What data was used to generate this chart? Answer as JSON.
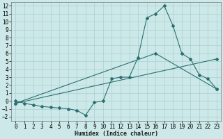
{
  "xlabel": "Humidex (Indice chaleur)",
  "bg_color": "#cce8e8",
  "line_color": "#2a7070",
  "grid_color": "#aad0d0",
  "xlim": [
    -0.5,
    23.5
  ],
  "ylim": [
    -2.5,
    12.5
  ],
  "xticks": [
    0,
    1,
    2,
    3,
    4,
    5,
    6,
    7,
    8,
    9,
    10,
    11,
    12,
    13,
    14,
    15,
    16,
    17,
    18,
    19,
    20,
    21,
    22,
    23
  ],
  "yticks": [
    -2,
    -1,
    0,
    1,
    2,
    3,
    4,
    5,
    6,
    7,
    8,
    9,
    10,
    11,
    12
  ],
  "line1_x": [
    0,
    1,
    2,
    3,
    4,
    5,
    6,
    7,
    8,
    9,
    10,
    11,
    12,
    13,
    14,
    15,
    16,
    17,
    18,
    19,
    20,
    21,
    22,
    23
  ],
  "line1_y": [
    0,
    -0.3,
    -0.5,
    -0.7,
    -0.8,
    -0.9,
    -1.0,
    -1.2,
    -1.8,
    -0.2,
    0.0,
    2.8,
    3.0,
    3.0,
    5.5,
    10.5,
    11.0,
    12.0,
    9.5,
    6.0,
    5.3,
    3.3,
    2.8,
    1.5
  ],
  "line2_x": [
    0,
    23
  ],
  "line2_y": [
    -0.3,
    5.3
  ],
  "line3_x": [
    0,
    16,
    23
  ],
  "line3_y": [
    -0.3,
    6.0,
    1.5
  ],
  "marker": "D",
  "markersize": 2.0,
  "linewidth": 0.8,
  "tick_fontsize": 5.5,
  "xlabel_fontsize": 6.0
}
